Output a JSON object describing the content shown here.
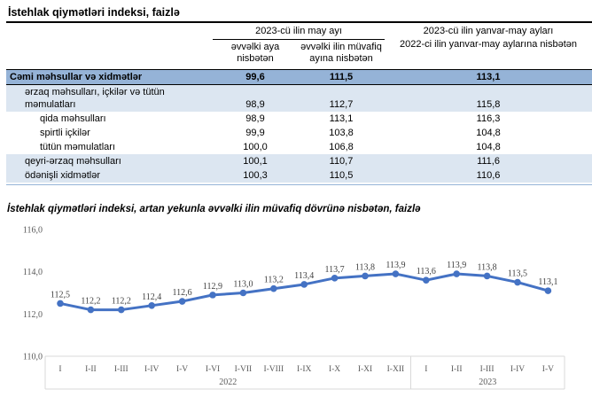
{
  "page": {
    "title": "İstehlak qiymətləri indeksi, faizlə"
  },
  "table": {
    "group_header": "2023-cü ilin may ayı",
    "subheaders": [
      "əvvəlki aya nisbətən",
      "əvvəlki ilin müvafiq ayına nisbətən"
    ],
    "right_header_line1": "2023-cü ilin yanvar-may ayları",
    "right_header_line2": "2022-ci ilin yanvar-may aylarına nisbətən",
    "rows": [
      {
        "label": "Cəmi məhsullar və xidmətlər",
        "values": [
          "99,6",
          "111,5",
          "113,1"
        ],
        "indent": 0,
        "style": "total"
      },
      {
        "label": "ərzaq məhsulları, içkilər və tütün məmulatları",
        "values": [
          "98,9",
          "112,7",
          "115,8"
        ],
        "indent": 1,
        "style": "alt"
      },
      {
        "label": "qida məhsulları",
        "values": [
          "98,9",
          "113,1",
          "116,3"
        ],
        "indent": 2,
        "style": "plain"
      },
      {
        "label": "spirtli içkilər",
        "values": [
          "99,9",
          "103,8",
          "104,8"
        ],
        "indent": 2,
        "style": "plain"
      },
      {
        "label": "tütün məmulatları",
        "values": [
          "100,0",
          "106,8",
          "104,8"
        ],
        "indent": 2,
        "style": "plain"
      },
      {
        "label": "qeyri-ərzaq məhsulları",
        "values": [
          "100,1",
          "110,7",
          "111,6"
        ],
        "indent": 1,
        "style": "alt"
      },
      {
        "label": "ödənişli xidmətlər",
        "values": [
          "100,3",
          "110,5",
          "110,6"
        ],
        "indent": 1,
        "style": "alt"
      }
    ]
  },
  "chart_data": {
    "type": "line",
    "title": "İstehlak qiymətləri indeksi, artan yekunla əvvəlki ilin müvafiq dövrünə nisbətən, faizlə",
    "categories": [
      "I",
      "I-II",
      "I-III",
      "I-IV",
      "I-V",
      "I-VI",
      "I-VII",
      "I-VIII",
      "I-IX",
      "I-X",
      "I-XI",
      "I-XII",
      "I",
      "I-II",
      "I-III",
      "I-IV",
      "I-V"
    ],
    "values": [
      112.5,
      112.2,
      112.2,
      112.4,
      112.6,
      112.9,
      113.0,
      113.2,
      113.4,
      113.7,
      113.8,
      113.9,
      113.6,
      113.9,
      113.8,
      113.5,
      113.1
    ],
    "year_groups": [
      {
        "label": "2022",
        "count": 12
      },
      {
        "label": "2023",
        "count": 5
      }
    ],
    "xlabel": "",
    "ylabel": "",
    "ylim": [
      110,
      116
    ],
    "ytick_step": 2,
    "decimal_comma": true,
    "grid": false,
    "legend": "none",
    "data_labels": true
  },
  "colors": {
    "line": "#4472C4",
    "total_row_bg": "#95B3D7",
    "alt_row_bg": "#DCE6F1",
    "axis_text": "#595959",
    "axis_line": "#D9D9D9",
    "data_label": "#404040"
  }
}
